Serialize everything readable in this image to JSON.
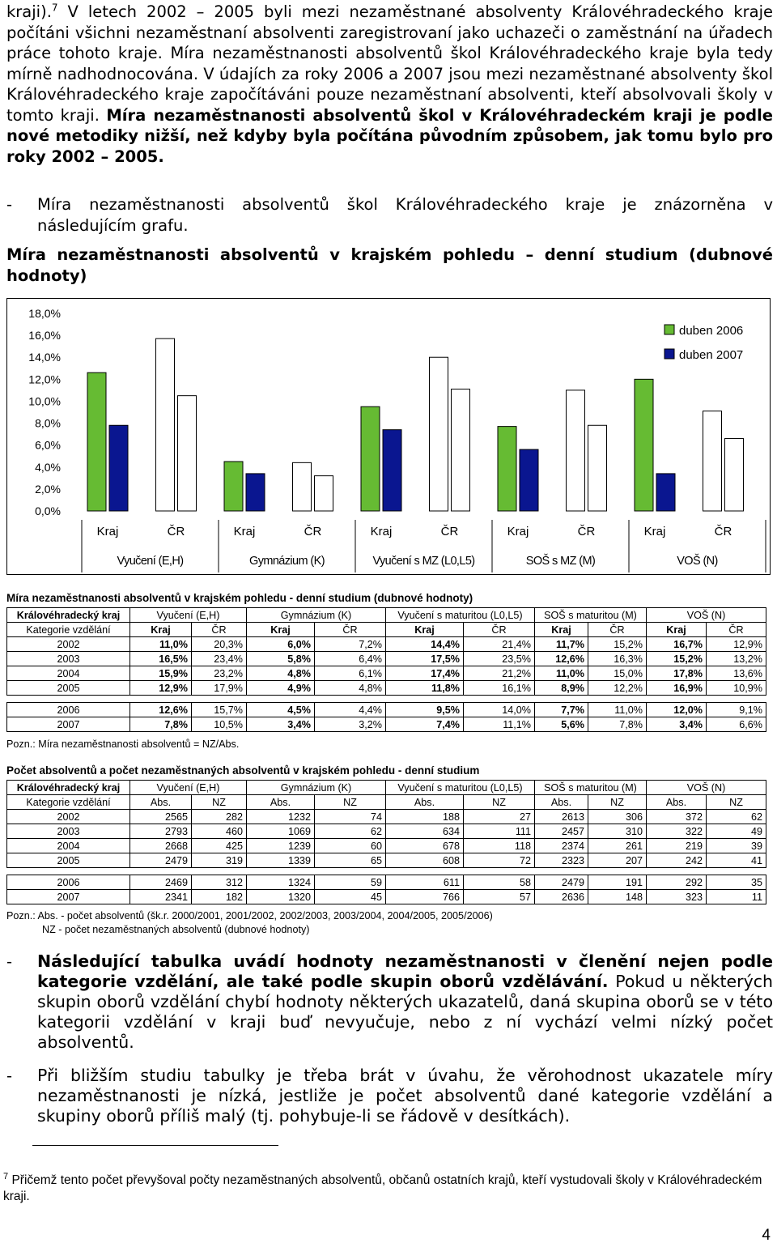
{
  "intro": {
    "p1_lead": "kraji).",
    "p1_sup": "7",
    "p1_text": " V letech 2002 – 2005 byli mezi nezaměstnané absolventy Královéhradeckého kraje počítáni všichni nezaměstnaní absolventi zaregistrovaní jako uchazeči o zaměstnání na úřadech práce tohoto kraje. Míra nezaměstnanosti absolventů škol Královéhradeckého kraje byla tedy mírně nadhodnocována. V údajích za roky 2006 a 2007 jsou mezi nezaměstnané absolventy škol Královéhradeckého kraje započítáváni pouze nezaměstnaní absolventi, kteří absolvovali školy v tomto kraji. ",
    "p1_bold": "Míra nezaměstnanosti absolventů škol v Královéhradeckém kraji je podle nové metodiky nižší, než kdyby byla počítána původním způsobem, jak tomu bylo pro roky 2002 – 2005.",
    "bullet": "-",
    "p2_text": "Míra nezaměstnanosti absolventů škol Královéhradeckého kraje je znázorněna v následujícím grafu."
  },
  "chart_heading": "Míra nezaměstnanosti absolventů v krajském pohledu – denní studium (dubnové hodnoty)",
  "chart_data": {
    "type": "bar",
    "categories": [
      "Kraj",
      "ČR",
      "Kraj",
      "ČR",
      "Kraj",
      "ČR",
      "Kraj",
      "ČR",
      "Kraj",
      "ČR"
    ],
    "groups": [
      "Vyučení (E,H)",
      "Gymnázium (K)",
      "Vyučení s MZ (L0,L5)",
      "SOŠ s MZ (M)",
      "VOŠ (N)"
    ],
    "series": [
      {
        "name": "duben 2006",
        "values": [
          12.6,
          15.7,
          4.5,
          4.4,
          9.5,
          14.0,
          7.7,
          11.0,
          12.0,
          9.1
        ]
      },
      {
        "name": "duben 2007",
        "values": [
          7.8,
          10.5,
          3.4,
          3.2,
          7.4,
          11.1,
          5.6,
          7.8,
          3.4,
          6.6
        ]
      }
    ],
    "y_ticks": [
      "18,0%",
      "16,0%",
      "14,0%",
      "12,0%",
      "10,0%",
      "8,0%",
      "6,0%",
      "4,0%",
      "2,0%",
      "0,0%"
    ],
    "ylim": [
      0,
      18
    ],
    "legend_position": "top-right",
    "colors": {
      "kraj_2006": "#66bb33",
      "kraj_2007": "#0a1690",
      "cr": "#ffffff"
    }
  },
  "table1": {
    "title": "Míra nezaměstnanosti absolventů v krajském pohledu - denní studium (dubnové hodnoty)",
    "head1": [
      "Královéhradecký kraj",
      "Vyučení (E,H)",
      "Gymnázium (K)",
      "Vyučení s maturitou (L0,L5)",
      "SOŠ s maturitou (M)",
      "VOŠ (N)"
    ],
    "head2": [
      "Kategorie vzdělání",
      "Kraj",
      "ČR",
      "Kraj",
      "ČR",
      "Kraj",
      "ČR",
      "Kraj",
      "ČR",
      "Kraj",
      "ČR"
    ],
    "rows_a": [
      [
        "2002",
        "11,0%",
        "20,3%",
        "6,0%",
        "7,2%",
        "14,4%",
        "21,4%",
        "11,7%",
        "15,2%",
        "16,7%",
        "12,9%"
      ],
      [
        "2003",
        "16,5%",
        "23,4%",
        "5,8%",
        "6,4%",
        "17,5%",
        "23,5%",
        "12,6%",
        "16,3%",
        "15,2%",
        "13,2%"
      ],
      [
        "2004",
        "15,9%",
        "23,2%",
        "4,8%",
        "6,1%",
        "17,4%",
        "21,2%",
        "11,0%",
        "15,0%",
        "17,8%",
        "13,6%"
      ],
      [
        "2005",
        "12,9%",
        "17,9%",
        "4,9%",
        "4,8%",
        "11,8%",
        "16,1%",
        "8,9%",
        "12,2%",
        "16,9%",
        "10,9%"
      ]
    ],
    "rows_b": [
      [
        "2006",
        "12,6%",
        "15,7%",
        "4,5%",
        "4,4%",
        "9,5%",
        "14,0%",
        "7,7%",
        "11,0%",
        "12,0%",
        "9,1%"
      ],
      [
        "2007",
        "7,8%",
        "10,5%",
        "3,4%",
        "3,2%",
        "7,4%",
        "11,1%",
        "5,6%",
        "7,8%",
        "3,4%",
        "6,6%"
      ]
    ],
    "note": "Pozn.: Míra nezaměstnanosti absolventů = NZ/Abs."
  },
  "table2": {
    "title": "Počet absolventů a počet nezaměstnaných absolventů v krajském pohledu - denní studium",
    "head1": [
      "Královéhradecký kraj",
      "Vyučení (E,H)",
      "Gymnázium (K)",
      "Vyučení s maturitou (L0,L5)",
      "SOŠ s maturitou (M)",
      "VOŠ (N)"
    ],
    "head2": [
      "Kategorie vzdělání",
      "Abs.",
      "NZ",
      "Abs.",
      "NZ",
      "Abs.",
      "NZ",
      "Abs.",
      "NZ",
      "Abs.",
      "NZ"
    ],
    "rows_a": [
      [
        "2002",
        "2565",
        "282",
        "1232",
        "74",
        "188",
        "27",
        "2613",
        "306",
        "372",
        "62"
      ],
      [
        "2003",
        "2793",
        "460",
        "1069",
        "62",
        "634",
        "111",
        "2457",
        "310",
        "322",
        "49"
      ],
      [
        "2004",
        "2668",
        "425",
        "1239",
        "60",
        "678",
        "118",
        "2374",
        "261",
        "219",
        "39"
      ],
      [
        "2005",
        "2479",
        "319",
        "1339",
        "65",
        "608",
        "72",
        "2323",
        "207",
        "242",
        "41"
      ]
    ],
    "rows_b": [
      [
        "2006",
        "2469",
        "312",
        "1324",
        "59",
        "611",
        "58",
        "2479",
        "191",
        "292",
        "35"
      ],
      [
        "2007",
        "2341",
        "182",
        "1320",
        "45",
        "766",
        "57",
        "2636",
        "148",
        "323",
        "11"
      ]
    ],
    "note1": "Pozn.: Abs. - počet absolventů (šk.r. 2000/2001, 2001/2002, 2002/2003, 2003/2004, 2004/2005, 2005/2006)",
    "note2": "NZ - počet nezaměstnaných absolventů (dubnové hodnoty)"
  },
  "outro": {
    "b1_bold": "Následující tabulka uvádí hodnoty nezaměstnanosti v členění nejen podle kategorie vzdělání, ale také podle skupin oborů vzdělávání.",
    "b1_text": " Pokud u některých skupin oborů vzdělání chybí hodnoty některých ukazatelů, daná skupina oborů se v této kategorii vzdělání v kraji buď nevyučuje, nebo z ní vychází velmi nízký počet absolventů.",
    "b2_text": "Při bližším studiu tabulky je třeba brát v úvahu, že věrohodnost ukazatele míry nezaměstnanosti je nízká, jestliže je počet absolventů dané kategorie vzdělání a skupiny oborů příliš malý (tj. pohybuje-li se řádově v desítkách)."
  },
  "footnote": {
    "mark": "7",
    "text": "Přičemž tento počet převyšoval počty nezaměstnaných absolventů, občanů ostatních krajů, kteří vystudovali školy v Královéhradeckém kraji."
  },
  "page_number": "4"
}
